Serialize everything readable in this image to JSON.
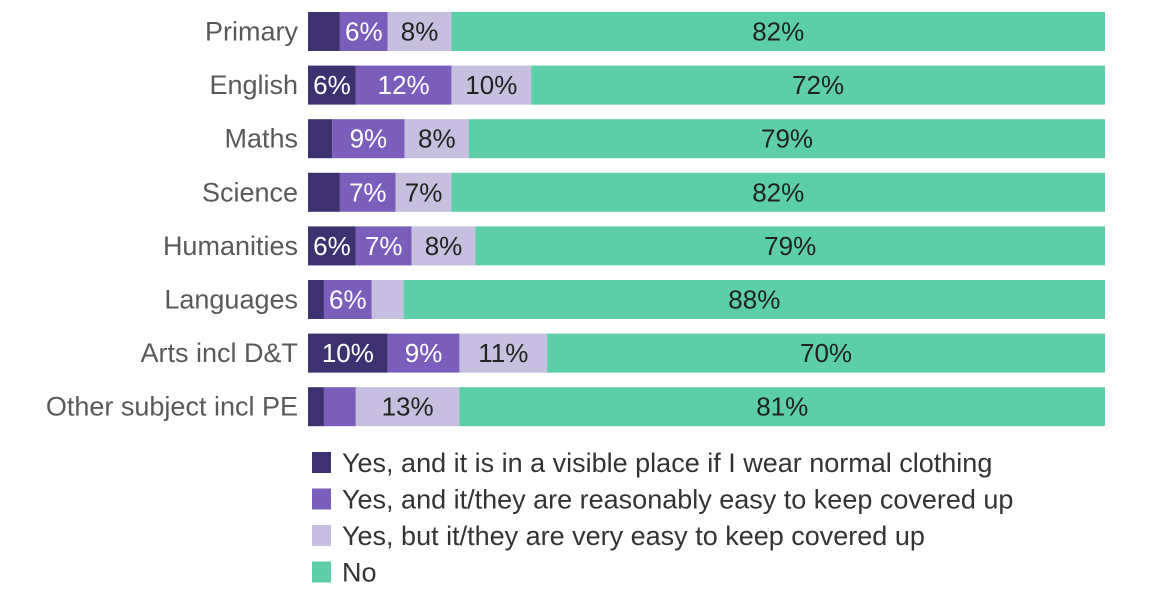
{
  "chart_data": {
    "type": "bar",
    "orientation": "horizontal",
    "stacked": true,
    "normalized": true,
    "categories": [
      "Primary",
      "English",
      "Maths",
      "Science",
      "Humanities",
      "Languages",
      "Arts incl D&T",
      "Other subject incl PE"
    ],
    "series": [
      {
        "name": "Yes, and it is in a visible place if I wear normal clothing",
        "color": "#3d3170",
        "values": [
          4,
          6,
          3,
          4,
          6,
          2,
          10,
          2
        ],
        "labels": [
          "",
          "6%",
          "",
          "",
          "6%",
          "",
          "10%",
          ""
        ],
        "label_color": "#ffffff"
      },
      {
        "name": "Yes, and it/they are reasonably easy to keep covered up",
        "color": "#7b5dbb",
        "values": [
          6,
          12,
          9,
          7,
          7,
          6,
          9,
          4
        ],
        "labels": [
          "6%",
          "12%",
          "9%",
          "7%",
          "7%",
          "6%",
          "9%",
          ""
        ],
        "label_color": "#ffffff"
      },
      {
        "name": "Yes, but it/they are very easy to keep covered up",
        "color": "#c7bfe0",
        "values": [
          8,
          10,
          8,
          7,
          8,
          4,
          11,
          13
        ],
        "labels": [
          "8%",
          "10%",
          "8%",
          "7%",
          "8%",
          "",
          "11%",
          "13%"
        ],
        "label_color": "#222222"
      },
      {
        "name": "No",
        "color": "#5ccfa8",
        "values": [
          82,
          72,
          79,
          82,
          79,
          88,
          70,
          81
        ],
        "labels": [
          "82%",
          "72%",
          "79%",
          "82%",
          "79%",
          "88%",
          "70%",
          "81%"
        ],
        "label_color": "#222222"
      }
    ],
    "xlim": [
      0,
      100
    ],
    "legend_position": "bottom",
    "grid": false
  }
}
